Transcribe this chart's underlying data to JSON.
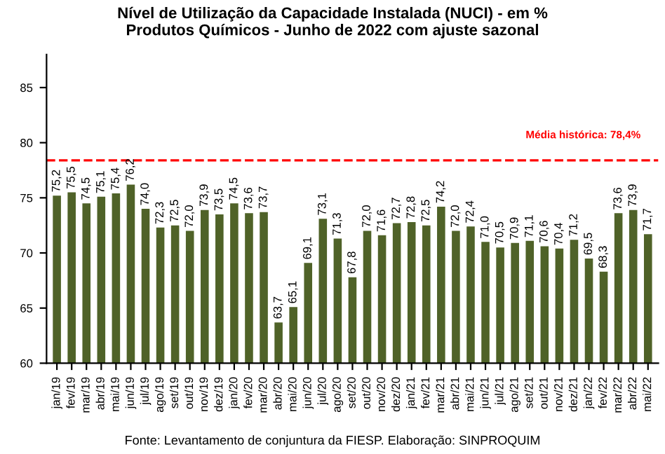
{
  "chart_data": {
    "type": "bar",
    "title": "Nível de Utilização da Capacidade Instalada (NUCI) - em %\nProdutos Químicos - Junho de 2022 com ajuste sazonal",
    "categories": [
      "jan/19",
      "fev/19",
      "mar/19",
      "abr/19",
      "mai/19",
      "jun/19",
      "jul/19",
      "ago/19",
      "set/19",
      "out/19",
      "nov/19",
      "dez/19",
      "jan/20",
      "fev/20",
      "mar/20",
      "abr/20",
      "mai/20",
      "jun/20",
      "jul/20",
      "ago/20",
      "set/20",
      "out/20",
      "nov/20",
      "dez/20",
      "jan/21",
      "fev/21",
      "mar/21",
      "abr/21",
      "mai/21",
      "jun/21",
      "jul/21",
      "ago/21",
      "set/21",
      "out/21",
      "nov/21",
      "dez/21",
      "jan/22",
      "fev/22",
      "mar/22",
      "abr/22",
      "mai/22"
    ],
    "values": [
      75.2,
      75.5,
      74.5,
      75.1,
      75.4,
      76.2,
      74.0,
      72.3,
      72.5,
      72.0,
      73.9,
      73.5,
      74.5,
      73.6,
      73.7,
      63.7,
      65.1,
      69.1,
      73.1,
      71.3,
      67.8,
      72.0,
      71.6,
      72.7,
      72.8,
      72.5,
      74.2,
      72.0,
      72.4,
      71.0,
      70.5,
      70.9,
      71.1,
      70.6,
      70.4,
      71.2,
      69.5,
      68.3,
      73.6,
      73.9,
      71.7
    ],
    "value_labels": [
      "75,2",
      "75,5",
      "74,5",
      "75,1",
      "75,4",
      "76,2",
      "74,0",
      "72,3",
      "72,5",
      "72,0",
      "73,9",
      "73,5",
      "74,5",
      "73,6",
      "73,7",
      "63,7",
      "65,1",
      "69,1",
      "73,1",
      "71,3",
      "67,8",
      "72,0",
      "71,6",
      "72,7",
      "72,8",
      "72,5",
      "74,2",
      "72,0",
      "72,4",
      "71,0",
      "70,5",
      "70,9",
      "71,1",
      "70,6",
      "70,4",
      "71,2",
      "69,5",
      "68,3",
      "73,6",
      "73,9",
      "71,7"
    ],
    "color": "#4f6228",
    "ylim": [
      60,
      88
    ],
    "yticks": [
      60,
      65,
      70,
      75,
      80,
      85
    ],
    "ref_lines": [
      {
        "axis": "y",
        "value": 78.4,
        "label": "Média histórica: 78,4%",
        "color": "#ff0000",
        "line_style": "dashed"
      }
    ],
    "annotations": [
      "Fonte: Levantamento de conjuntura da FIESP. Elaboração: SINPROQUIM"
    ],
    "grid": false,
    "legend": false
  }
}
